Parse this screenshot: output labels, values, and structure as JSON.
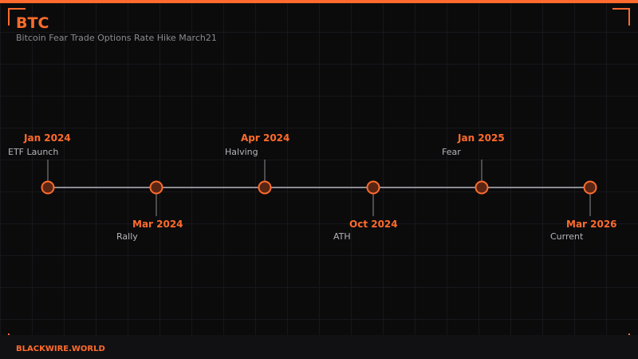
{
  "header": {
    "title": "BTC",
    "subtitle": "Bitcoin Fear Trade Options Rate Hike March21"
  },
  "footer": {
    "brand": "BLACKWIRE.WORLD"
  },
  "colors": {
    "accent": "#ff6b2c",
    "node_fill": "#5a2614",
    "line": "#8c8c94"
  },
  "events": [
    {
      "date": "Jan 2024",
      "label": "ETF Launch",
      "position": "above"
    },
    {
      "date": "Mar 2024",
      "label": "Rally",
      "position": "below"
    },
    {
      "date": "Apr 2024",
      "label": "Halving",
      "position": "above"
    },
    {
      "date": "Oct 2024",
      "label": "ATH",
      "position": "below"
    },
    {
      "date": "Jan 2025",
      "label": "Fear",
      "position": "above"
    },
    {
      "date": "Mar 2026",
      "label": "Current",
      "position": "below"
    }
  ]
}
